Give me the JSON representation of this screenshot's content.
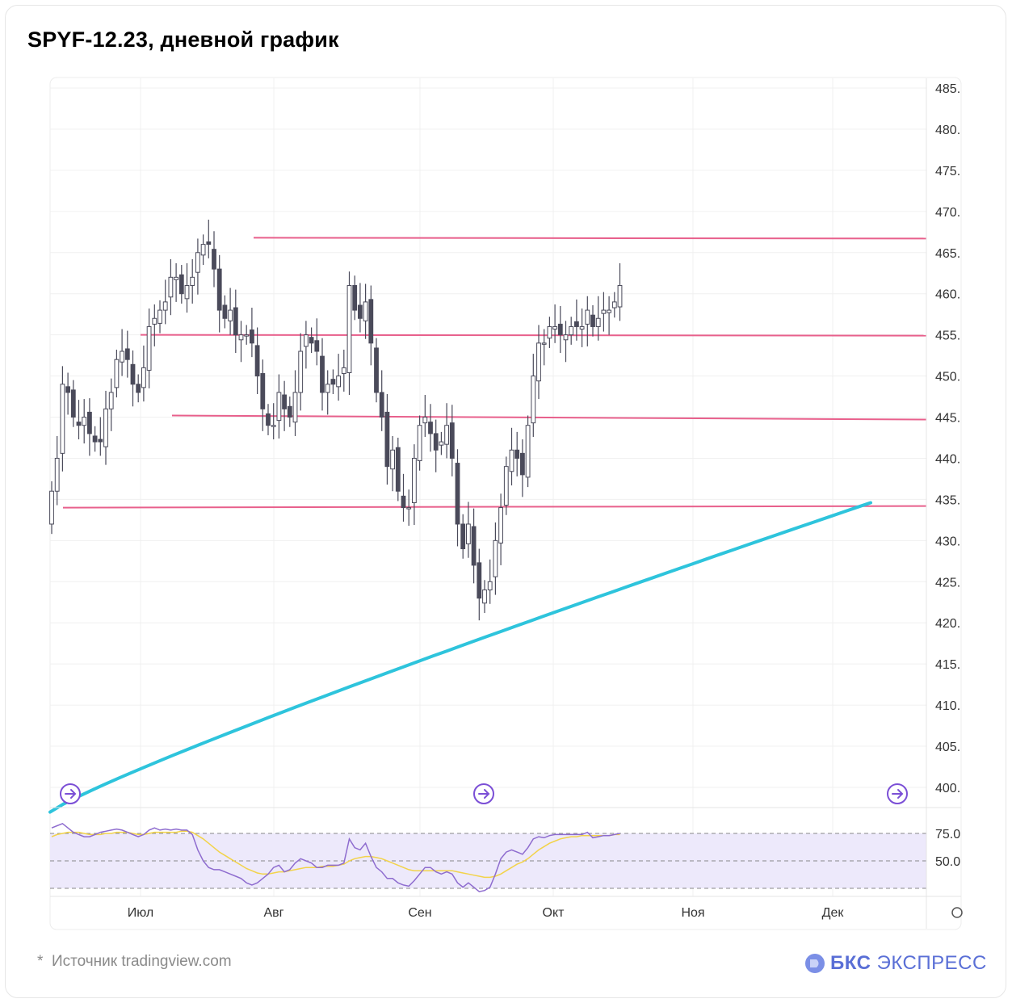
{
  "title": "SPYF-12.23, дневной график",
  "footer": {
    "source": "Источник tradingview.com",
    "asterisk": "*"
  },
  "brand": {
    "bold": "БКС",
    "regular": "ЭКСПРЕСС"
  },
  "colors": {
    "candle": "#4a4a5a",
    "level": "#e8608c",
    "ma": "#2ec4dc",
    "rsi": "#8e6ccf",
    "rsi_ma": "#f2d34a",
    "rsi_band": "#ede9fb",
    "brand": "#5a6fd6"
  },
  "chart_data": [
    {
      "type": "candlestick",
      "title": "SPYF-12.23, дневной график",
      "x_labels": [
        "Июл",
        "Авг",
        "Сен",
        "Окт",
        "Ноя",
        "Дек"
      ],
      "y_ticks": [
        "485.",
        "480.",
        "475.",
        "470.",
        "465.",
        "460.",
        "455.",
        "450.",
        "445.",
        "440.",
        "435.",
        "430.",
        "425.",
        "420.",
        "415.",
        "410.",
        "405.",
        "400."
      ],
      "ylim": [
        396,
        486
      ],
      "grid": true,
      "closes": [
        436,
        440,
        449,
        448,
        445,
        444,
        445,
        443,
        442,
        442,
        446,
        448,
        452,
        453,
        452,
        449,
        448,
        451,
        456,
        457,
        458,
        459,
        462,
        462,
        460,
        461,
        462,
        465,
        466,
        466,
        463,
        458,
        457,
        458,
        455,
        455,
        455,
        454,
        450,
        446,
        444,
        444,
        448,
        446,
        445,
        448,
        453,
        455,
        454,
        453,
        448,
        449,
        449,
        450,
        451,
        461,
        458,
        457,
        459,
        454,
        448,
        445,
        439,
        441,
        436,
        434,
        434,
        440,
        444,
        445,
        443,
        441,
        442,
        444,
        440,
        432,
        429,
        432,
        427,
        423,
        424,
        425,
        430,
        434,
        439,
        441,
        440,
        438,
        444,
        450,
        454,
        454,
        456,
        456,
        455,
        455,
        456,
        456,
        456,
        458,
        456,
        457,
        458,
        458,
        459,
        461
      ],
      "series": [
        {
          "name": "",
          "kind": "moving_average",
          "start": 397,
          "end": 434.6
        }
      ],
      "levels": [
        466.8,
        455,
        445,
        434
      ],
      "markers": [
        "goto-start",
        "goto-mid",
        "goto-end"
      ]
    },
    {
      "type": "line",
      "title": "",
      "y_ticks": [
        "75.0",
        "50.0"
      ],
      "band": [
        25,
        75
      ],
      "series": [
        {
          "name": "",
          "values": [
            80,
            82,
            84,
            80,
            76,
            74,
            72,
            72,
            74,
            76,
            77,
            78,
            79,
            78,
            76,
            74,
            72,
            74,
            78,
            80,
            78,
            79,
            78,
            79,
            78,
            78,
            74,
            60,
            50,
            44,
            42,
            42,
            40,
            38,
            36,
            34,
            30,
            28,
            30,
            34,
            38,
            44,
            46,
            40,
            42,
            48,
            52,
            50,
            48,
            44,
            44,
            46,
            46,
            46,
            48,
            70,
            62,
            60,
            66,
            54,
            44,
            40,
            34,
            34,
            30,
            28,
            27,
            32,
            38,
            44,
            44,
            40,
            38,
            40,
            38,
            30,
            26,
            30,
            26,
            22,
            23,
            26,
            38,
            52,
            58,
            60,
            58,
            56,
            62,
            70,
            72,
            71,
            73,
            74,
            74,
            74,
            74,
            74,
            74,
            76,
            71,
            72,
            73,
            73,
            74,
            75
          ]
        },
        {
          "name": "",
          "values": [
            72,
            74,
            75,
            76,
            76,
            76,
            75,
            74,
            74,
            74,
            75,
            75,
            76,
            76,
            76,
            75,
            74,
            74,
            75,
            76,
            76,
            76,
            76,
            76,
            77,
            77,
            76,
            73,
            70,
            66,
            62,
            58,
            55,
            52,
            49,
            46,
            43,
            41,
            39,
            38,
            38,
            39,
            40,
            40,
            41,
            42,
            43,
            44,
            44,
            44,
            45,
            45,
            45,
            46,
            47,
            50,
            52,
            53,
            54,
            54,
            53,
            52,
            50,
            48,
            46,
            44,
            42,
            41,
            41,
            41,
            41,
            41,
            41,
            41,
            41,
            40,
            39,
            38,
            37,
            36,
            35,
            35,
            36,
            38,
            41,
            44,
            47,
            49,
            52,
            56,
            60,
            63,
            66,
            68,
            70,
            71,
            72,
            72,
            73,
            73,
            73,
            73,
            73,
            73,
            74,
            74
          ]
        }
      ]
    }
  ]
}
